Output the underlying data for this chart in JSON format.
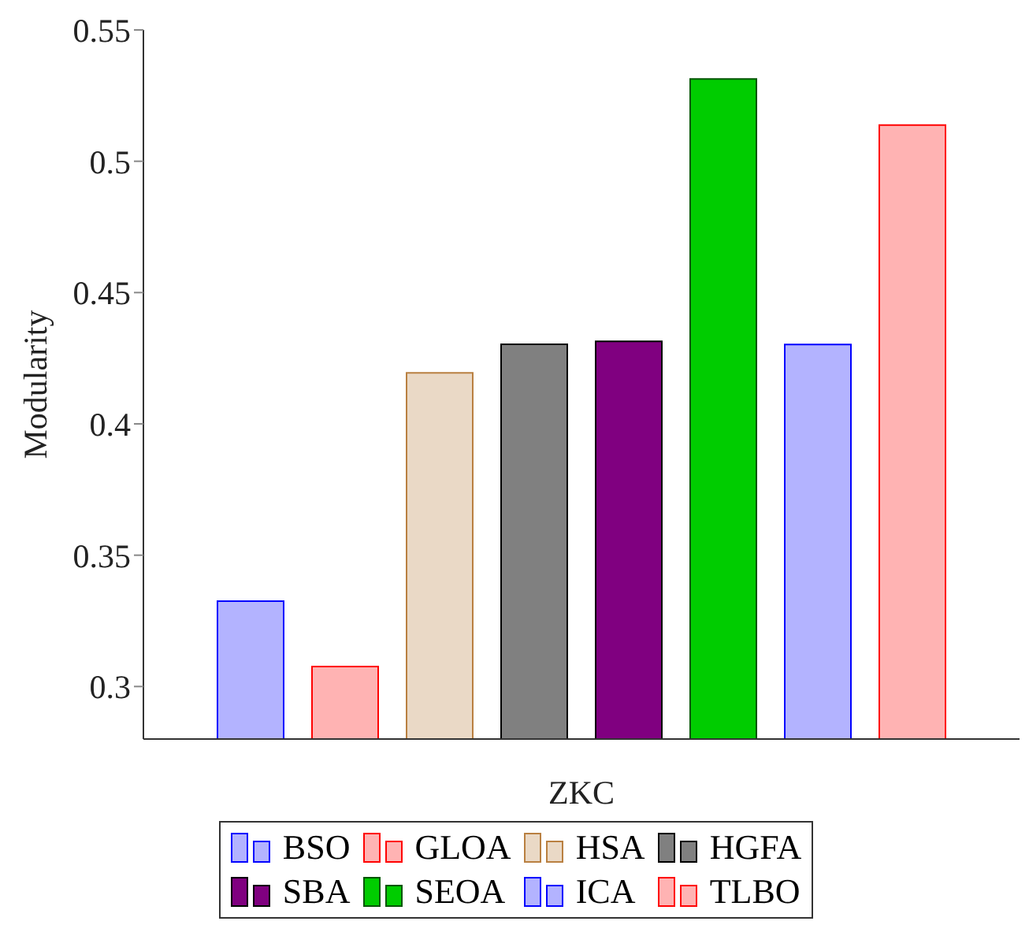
{
  "chart_data": {
    "type": "bar",
    "ylabel": "Modularity",
    "categories": [
      "ZKC"
    ],
    "series": [
      {
        "name": "BSO",
        "color": "#b3b3ff",
        "values": [
          0.3325
        ]
      },
      {
        "name": "GLOA",
        "color": "#ffb3b3",
        "values": [
          0.3076
        ]
      },
      {
        "name": "HSA",
        "color": "#ead9c6",
        "values": [
          0.4194
        ]
      },
      {
        "name": "HGFA",
        "color": "#808080",
        "values": [
          0.4303
        ]
      },
      {
        "name": "SBA",
        "color": "#800080",
        "values": [
          0.4314
        ]
      },
      {
        "name": "SEOA",
        "color": "#00cc00",
        "values": [
          0.5313
        ]
      },
      {
        "name": "ICA",
        "color": "#b3b3ff",
        "values": [
          0.4302
        ]
      },
      {
        "name": "TLBO",
        "color": "#ffb3b3",
        "values": [
          0.5138
        ]
      }
    ],
    "ylim": [
      0.28,
      0.55
    ],
    "yticks": [
      0.3,
      0.35,
      0.4,
      0.45,
      0.5,
      0.55
    ],
    "legend": "bottom"
  }
}
